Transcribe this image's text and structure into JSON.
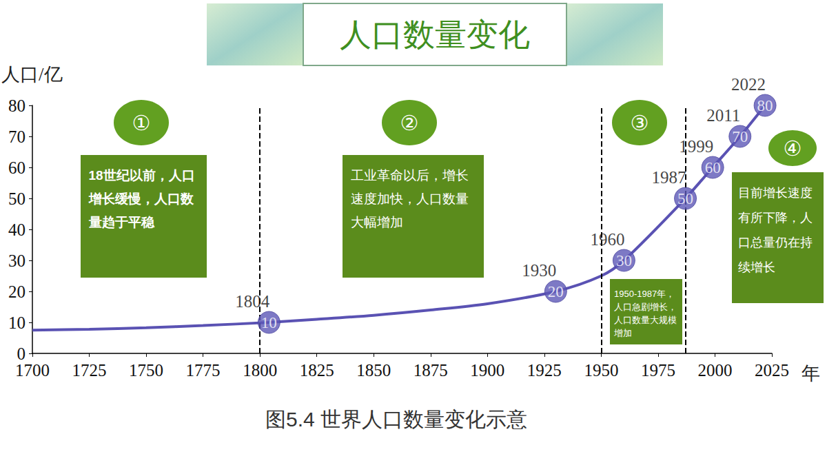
{
  "header": {
    "title": "人口数量变化"
  },
  "chart_data": {
    "type": "line",
    "x_label": "年",
    "y_label": "人口/亿",
    "x": [
      1700,
      1725,
      1750,
      1775,
      1804,
      1825,
      1850,
      1875,
      1900,
      1930,
      1950,
      1960,
      1987,
      1999,
      2011,
      2022
    ],
    "values": [
      7.5,
      7.8,
      8.3,
      9,
      10,
      11,
      12.3,
      14,
      16,
      20,
      25,
      30,
      50,
      60,
      70,
      80
    ],
    "color": "#5a52b3",
    "xlim": [
      1700,
      2025
    ],
    "xticks": [
      1700,
      1725,
      1750,
      1775,
      1800,
      1825,
      1850,
      1875,
      1900,
      1925,
      1950,
      1975,
      2000,
      2025
    ],
    "ylim": [
      0,
      80
    ],
    "yticks": [
      0,
      10,
      20,
      30,
      40,
      50,
      60,
      70,
      80
    ],
    "grid": false,
    "data_labels": true,
    "milestones": {
      "x": [
        1804,
        1930,
        1960,
        1987,
        1999,
        2011,
        2022
      ],
      "values": [
        10,
        20,
        30,
        50,
        60,
        70,
        80
      ]
    },
    "dividers": [
      1800,
      1950,
      1987
    ],
    "periods": [
      {
        "number": "①",
        "text": "18世纪以前，人口增长缓慢，人口数量趋于平稳"
      },
      {
        "number": "②",
        "text": "工业革命以后，增长速度加快，人口数量大幅增加"
      },
      {
        "number": "③",
        "text": "1950-1987年，人口急剧增长，人口数量大规模增加"
      },
      {
        "number": "④",
        "text": "目前增长速度有所下降，人口总量仍在持续增长"
      }
    ],
    "caption": "图5.4 世界人口数量变化示意"
  }
}
